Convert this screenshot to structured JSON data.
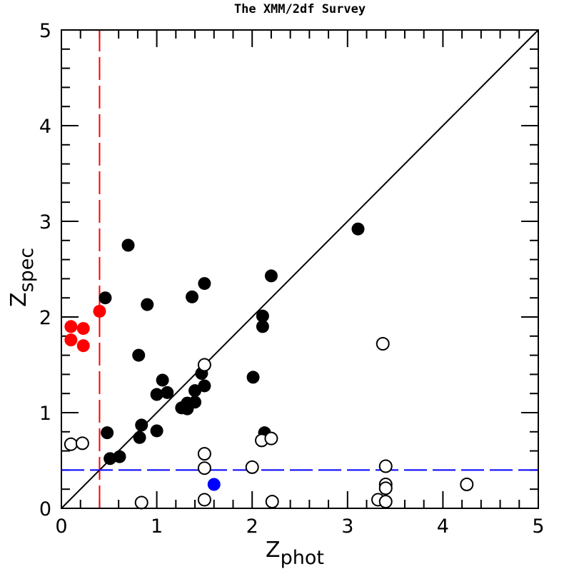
{
  "chart_data": {
    "type": "scatter",
    "title": "The XMM/2df Survey",
    "xlabel": "Z",
    "xlabel_sub": "phot",
    "ylabel": "Z",
    "ylabel_sub": "spec",
    "xlim": [
      0,
      5
    ],
    "ylim": [
      0,
      5
    ],
    "x_ticks": [
      "0",
      "1",
      "2",
      "3",
      "4",
      "5"
    ],
    "y_ticks": [
      "0",
      "1",
      "2",
      "3",
      "4",
      "5"
    ],
    "grid": false,
    "reference_lines": {
      "diagonal": {
        "type": "y=x",
        "color": "#000000"
      },
      "vertical_dashed": {
        "x": 0.4,
        "color": "#ff0000"
      },
      "horizontal_dashed": {
        "y": 0.4,
        "color": "#0000ff"
      }
    },
    "series": [
      {
        "style": "filled",
        "color": "#000000",
        "points": [
          [
            0.46,
            2.2
          ],
          [
            0.7,
            2.75
          ],
          [
            0.9,
            2.13
          ],
          [
            1.37,
            2.21
          ],
          [
            1.5,
            2.35
          ],
          [
            2.2,
            2.43
          ],
          [
            3.11,
            2.92
          ],
          [
            0.81,
            1.6
          ],
          [
            0.48,
            0.79
          ],
          [
            0.51,
            0.52
          ],
          [
            0.61,
            0.54
          ],
          [
            0.82,
            0.74
          ],
          [
            0.84,
            0.87
          ],
          [
            1.0,
            0.81
          ],
          [
            1.0,
            1.19
          ],
          [
            1.06,
            1.34
          ],
          [
            1.11,
            1.21
          ],
          [
            1.26,
            1.05
          ],
          [
            1.32,
            1.1
          ],
          [
            1.32,
            1.04
          ],
          [
            1.4,
            1.23
          ],
          [
            1.4,
            1.11
          ],
          [
            1.47,
            1.41
          ],
          [
            1.5,
            1.28
          ],
          [
            2.01,
            1.37
          ],
          [
            2.11,
            2.01
          ],
          [
            2.11,
            1.9
          ],
          [
            2.13,
            0.79
          ]
        ]
      },
      {
        "style": "open",
        "color": "#000000",
        "points": [
          [
            0.1,
            0.67
          ],
          [
            0.22,
            0.68
          ],
          [
            0.84,
            0.06
          ],
          [
            1.5,
            1.5
          ],
          [
            1.5,
            0.57
          ],
          [
            1.5,
            0.42
          ],
          [
            1.5,
            0.09
          ],
          [
            2.0,
            0.43
          ],
          [
            2.1,
            0.71
          ],
          [
            2.2,
            0.73
          ],
          [
            2.21,
            0.07
          ],
          [
            3.37,
            1.72
          ],
          [
            3.32,
            0.09
          ],
          [
            3.4,
            0.44
          ],
          [
            3.4,
            0.25
          ],
          [
            3.4,
            0.21
          ],
          [
            3.4,
            0.07
          ],
          [
            4.25,
            0.25
          ]
        ]
      },
      {
        "style": "filled",
        "color": "#ff0000",
        "points": [
          [
            0.1,
            1.9
          ],
          [
            0.1,
            1.76
          ],
          [
            0.23,
            1.88
          ],
          [
            0.23,
            1.7
          ],
          [
            0.4,
            2.06
          ]
        ]
      },
      {
        "style": "filled",
        "color": "#0000ff",
        "points": [
          [
            1.6,
            0.25
          ]
        ]
      }
    ]
  }
}
